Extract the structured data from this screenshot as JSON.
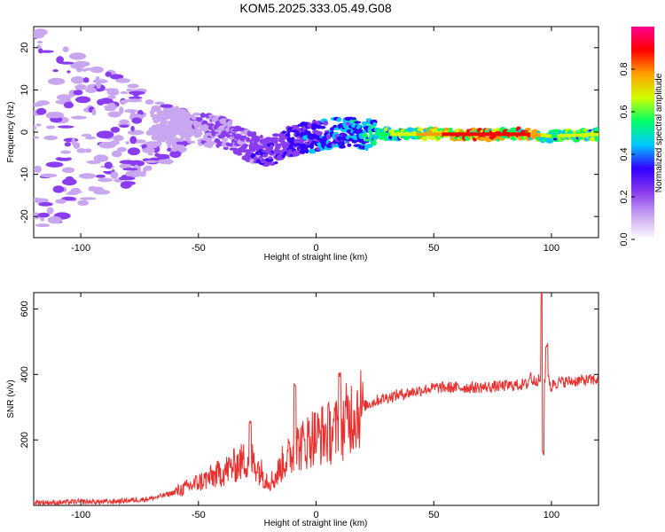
{
  "title": "KOM5.2025.333.05.49.G08",
  "chart_data": [
    {
      "type": "heatmap",
      "xlabel": "Height of straight line (km)",
      "ylabel": "Frequency (Hz)",
      "xlim": [
        -120,
        120
      ],
      "ylim": [
        -25,
        25
      ],
      "xticks": [
        -100,
        -50,
        0,
        50,
        100
      ],
      "yticks": [
        -20,
        -10,
        0,
        10,
        20
      ],
      "colorbar": {
        "label": "Normalized spectral amplitude",
        "range": [
          0,
          1
        ],
        "ticks": [
          "0.0",
          "0.2",
          "0.4",
          "0.6",
          "0.8"
        ],
        "colors": [
          "#ffffff",
          "#c8a6f0",
          "#8a3cf0",
          "#3200ff",
          "#00c8ff",
          "#00ff64",
          "#d2ff00",
          "#ffa000",
          "#ff0000",
          "#ff0090"
        ]
      },
      "ridge": {
        "description_points_km": [
          -60,
          -40,
          -30,
          -20,
          -10,
          0,
          10,
          30,
          60,
          90,
          100,
          120
        ],
        "frequency_hz": [
          1.5,
          0,
          -3,
          -5,
          -2,
          -1,
          0,
          -0.5,
          -0.5,
          -0.5,
          -1,
          -0.5
        ],
        "amplitude": [
          0.15,
          0.2,
          0.25,
          0.3,
          0.35,
          0.4,
          0.45,
          0.6,
          0.9,
          0.85,
          0.6,
          0.7
        ]
      }
    },
    {
      "type": "line",
      "xlabel": "Height of straight line (km)",
      "ylabel": "SNR (v/v)",
      "xlim": [
        -120,
        120
      ],
      "ylim": [
        0,
        650
      ],
      "xticks": [
        -100,
        -50,
        0,
        50,
        100
      ],
      "yticks": [
        200,
        400,
        600
      ],
      "line_color": "#e8302e",
      "series": [
        {
          "x": [
            -120,
            -110,
            -100,
            -90,
            -80,
            -70,
            -60,
            -50,
            -40,
            -35,
            -30,
            -25,
            -20,
            -15,
            -12,
            -10,
            -8,
            -5,
            -3,
            0,
            3,
            5,
            8,
            10,
            12,
            15,
            20,
            25,
            30,
            40,
            50,
            60,
            70,
            80,
            90,
            94,
            95,
            96,
            97,
            98,
            100,
            110,
            120
          ],
          "y": [
            10,
            8,
            12,
            10,
            15,
            20,
            40,
            70,
            100,
            120,
            140,
            150,
            30,
            120,
            180,
            160,
            120,
            260,
            180,
            200,
            230,
            240,
            200,
            220,
            260,
            290,
            300,
            320,
            330,
            345,
            360,
            360,
            360,
            365,
            370,
            375,
            640,
            160,
            420,
            360,
            375,
            380,
            385
          ]
        }
      ],
      "spikes": [
        {
          "x": -28,
          "y": 250
        },
        {
          "x": -9,
          "y": 370
        },
        {
          "x": 10,
          "y": 400
        },
        {
          "x": 96,
          "y": 645
        },
        {
          "x": 96.5,
          "y": 160
        },
        {
          "x": 98,
          "y": 490
        }
      ]
    }
  ]
}
